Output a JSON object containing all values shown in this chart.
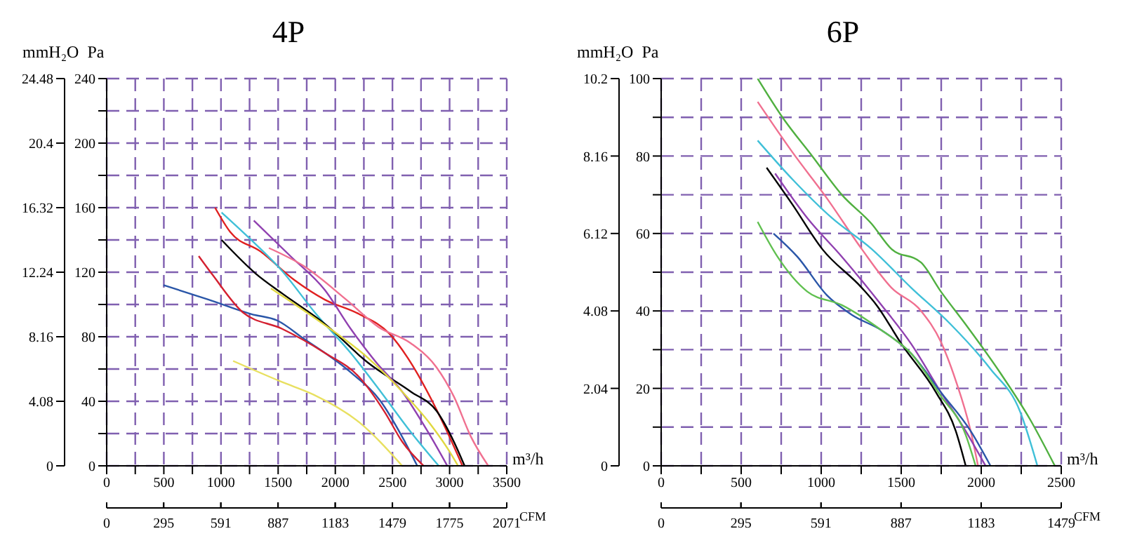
{
  "chart_data": [
    {
      "type": "line",
      "title": "4P",
      "ylabel": "Pa",
      "y2label": "mmH₂O",
      "xlabel": "m³/h",
      "x2label": "CFM",
      "grid": true,
      "xlim": [
        0,
        3500
      ],
      "xticks": [
        0,
        {
          "value": 250,
          "label": null
        },
        500,
        {
          "value": 750,
          "label": null
        },
        1000,
        {
          "value": 1250,
          "label": null
        },
        1500,
        {
          "value": 1750,
          "label": null
        },
        2000,
        {
          "value": 2250,
          "label": null
        },
        2500,
        {
          "value": 2750,
          "label": null
        },
        3000,
        {
          "value": 3250,
          "label": null
        },
        3500
      ],
      "x2lim": [
        0,
        2071
      ],
      "x2ticks": [
        0,
        295,
        591,
        887,
        1183,
        1479,
        1775,
        2071
      ],
      "ylim": [
        0,
        240
      ],
      "yticks": [
        0,
        {
          "value": 20,
          "label": null
        },
        40,
        {
          "value": 60,
          "label": null
        },
        80,
        {
          "value": 100,
          "label": null
        },
        120,
        {
          "value": 140,
          "label": null
        },
        160,
        {
          "value": 180,
          "label": null
        },
        200,
        {
          "value": 220,
          "label": null
        },
        240
      ],
      "y2lim": [
        0,
        24.48
      ],
      "y2ticks": [
        0,
        4.08,
        8.16,
        12.24,
        16.32,
        20.4,
        24.48
      ],
      "series": [
        {
          "color": "#2a56a8",
          "x": [
            497,
            892,
            1268,
            1494,
            1720,
            2134,
            2397,
            2585,
            2717
          ],
          "values": [
            112,
            103,
            94,
            90,
            79,
            58,
            40,
            18,
            0
          ]
        },
        {
          "color": "#d42030",
          "x": [
            805,
            930,
            1193,
            1532,
            1908,
            2209,
            2435,
            2585,
            2773
          ],
          "values": [
            130,
            118,
            95,
            85,
            70,
            55,
            33,
            15,
            0
          ]
        },
        {
          "color": "#e02020",
          "x": [
            948,
            1080,
            1343,
            1645,
            1908,
            2209,
            2472,
            2660,
            2849,
            2999,
            3112
          ],
          "values": [
            160,
            145,
            133,
            115,
            103,
            94,
            82,
            64,
            40,
            18,
            0
          ]
        },
        {
          "color": "#40c0d8",
          "x": [
            1005,
            1249,
            1532,
            1833,
            2134,
            2397,
            2660,
            2905
          ],
          "values": [
            157,
            141,
            121,
            94,
            70,
            46,
            21,
            0
          ]
        },
        {
          "color": "#000000",
          "x": [
            1005,
            1306,
            1532,
            1908,
            2284,
            2660,
            2886,
            3037,
            3131
          ],
          "values": [
            140,
            119,
            107,
            88,
            64,
            46,
            34,
            15,
            0
          ]
        },
        {
          "color": "#9040b0",
          "x": [
            1287,
            1607,
            1908,
            2134,
            2359,
            2585,
            2811,
            2980
          ],
          "values": [
            152,
            130,
            109,
            85,
            64,
            46,
            21,
            0
          ]
        },
        {
          "color": "#f07090",
          "x": [
            1419,
            1720,
            2096,
            2378,
            2660,
            2886,
            3037,
            3187,
            3338
          ],
          "values": [
            135,
            124,
            103,
            86,
            76,
            61,
            43,
            18,
            0
          ]
        },
        {
          "color": "#e0d840",
          "x": [
            1437,
            1833,
            2284,
            2585,
            2830,
            2980,
            3074
          ],
          "values": [
            110,
            91,
            67,
            46,
            26,
            11,
            0
          ]
        },
        {
          "color": "#e8e060",
          "x": [
            1106,
            1532,
            1814,
            2209,
            2585
          ],
          "values": [
            65,
            52,
            44,
            27,
            0
          ]
        }
      ]
    },
    {
      "type": "line",
      "title": "6P",
      "ylabel": "Pa",
      "y2label": "mmH₂O",
      "xlabel": "m³/h",
      "x2label": "CFM",
      "grid": true,
      "xlim": [
        0,
        2500
      ],
      "xticks": [
        0,
        {
          "value": 250,
          "label": null
        },
        500,
        {
          "value": 750,
          "label": null
        },
        1000,
        {
          "value": 1250,
          "label": null
        },
        1500,
        {
          "value": 1750,
          "label": null
        },
        2000,
        {
          "value": 2250,
          "label": null
        },
        2500
      ],
      "x2lim": [
        0,
        1479
      ],
      "x2ticks": [
        0,
        295,
        591,
        887,
        1183,
        1479
      ],
      "ylim": [
        0,
        100
      ],
      "yticks": [
        0,
        {
          "value": 10,
          "label": null
        },
        20,
        {
          "value": 30,
          "label": null
        },
        40,
        {
          "value": 50,
          "label": null
        },
        60,
        {
          "value": 70,
          "label": null
        },
        80,
        {
          "value": 90,
          "label": null
        },
        100
      ],
      "y2lim": [
        0,
        10.2
      ],
      "y2ticks": [
        0,
        2.04,
        4.08,
        6.12,
        8.16,
        10.2
      ],
      "series": [
        {
          "color": "#50b040",
          "x": [
            603,
            758,
            944,
            1129,
            1315,
            1439,
            1624,
            1748,
            1903,
            2119,
            2305,
            2460
          ],
          "values": [
            100,
            90,
            80,
            70,
            62.5,
            56,
            52.5,
            45,
            36.5,
            24,
            12,
            0
          ]
        },
        {
          "color": "#f07090",
          "x": [
            603,
            820,
            1037,
            1253,
            1439,
            1624,
            1748,
            1841,
            1934,
            1980
          ],
          "values": [
            94,
            81,
            69,
            56,
            46,
            40,
            32,
            22,
            9,
            0
          ]
        },
        {
          "color": "#40c0d8",
          "x": [
            603,
            820,
            1067,
            1315,
            1562,
            1810,
            2058,
            2243,
            2351
          ],
          "values": [
            84,
            74,
            64,
            56,
            46,
            36.5,
            25,
            14,
            0
          ]
        },
        {
          "color": "#9040b0",
          "x": [
            712,
            913,
            1129,
            1377,
            1562,
            1748,
            1903,
            2027
          ],
          "values": [
            75.5,
            64,
            54,
            41.5,
            31.5,
            19,
            9,
            0
          ]
        },
        {
          "color": "#000000",
          "x": [
            659,
            820,
            1006,
            1253,
            1346,
            1501,
            1717,
            1841,
            1903
          ],
          "values": [
            77,
            67.5,
            56,
            46,
            41.5,
            31.5,
            19,
            9,
            0
          ]
        },
        {
          "color": "#2a56a8",
          "x": [
            702,
            851,
            1037,
            1191,
            1377,
            1562,
            1748,
            1934,
            2058
          ],
          "values": [
            60,
            54,
            44,
            39,
            35,
            29,
            19,
            9,
            0
          ]
        },
        {
          "color": "#60c050",
          "x": [
            603,
            727,
            913,
            1129,
            1377,
            1562,
            1748,
            1903,
            1965
          ],
          "values": [
            63,
            54,
            45,
            41.5,
            35,
            29,
            18,
            8,
            0
          ]
        }
      ]
    }
  ]
}
